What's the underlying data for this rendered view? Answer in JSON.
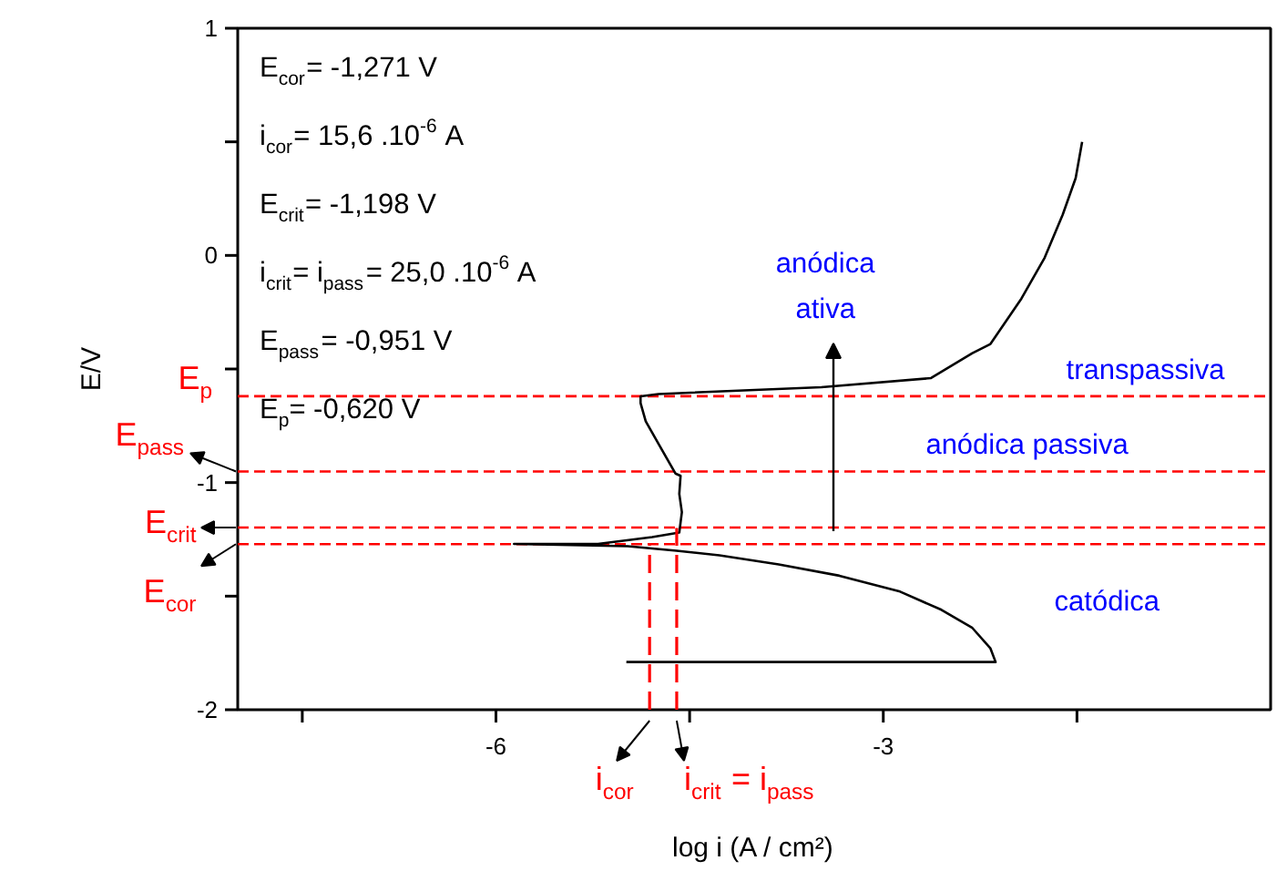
{
  "chart_data": {
    "type": "line",
    "xlabel": "log i (A / cm²)",
    "ylabel": "E/V",
    "xlim": [
      -8,
      0
    ],
    "ylim": [
      -2,
      1
    ],
    "xticks": [
      {
        "value": -7.5,
        "label": null
      },
      -6,
      {
        "value": -4.5,
        "label": null
      },
      -3,
      {
        "value": -1.5,
        "label": null
      }
    ],
    "yticks": [
      -2,
      {
        "value": -1.5,
        "label": null
      },
      -1,
      {
        "value": -0.5,
        "label": null
      },
      0,
      {
        "value": 0.5,
        "label": null
      },
      1
    ],
    "grid": false,
    "marker": "none",
    "series": [
      {
        "color": "#000000",
        "line_style": "solid",
        "x": [
          -4.99,
          -2.13,
          -2.17,
          -2.31,
          -2.55,
          -2.87,
          -3.34,
          -3.81,
          -4.27,
          -4.6,
          -4.98,
          -5.86,
          -5.21,
          -4.79,
          -4.58,
          -4.56,
          -4.58,
          -4.57,
          -4.61,
          -4.74,
          -4.84,
          -4.88,
          -4.88,
          -4.74,
          -3.48,
          -2.63,
          -2.31,
          -2.17,
          -1.93,
          -1.75,
          -1.61,
          -1.51,
          -1.46
        ],
        "values": [
          -1.79,
          -1.79,
          -1.73,
          -1.64,
          -1.56,
          -1.48,
          -1.41,
          -1.36,
          -1.32,
          -1.3,
          -1.28,
          -1.27,
          -1.27,
          -1.24,
          -1.22,
          -1.13,
          -1.05,
          -0.97,
          -0.96,
          -0.83,
          -0.73,
          -0.65,
          -0.62,
          -0.61,
          -0.58,
          -0.54,
          -0.43,
          -0.39,
          -0.19,
          -0.01,
          0.18,
          0.34,
          0.5
        ]
      },
      {
        "name": "i$_{cor}$",
        "color": "#ff0000",
        "line_style": "dashed",
        "x": [
          -4.81,
          -4.81
        ],
        "values": [
          -2,
          -1.27
        ]
      },
      {
        "name": "i$_{crit}$ = i$_{pass}$",
        "color": "#ff0000",
        "line_style": "dashed",
        "x": [
          -4.6,
          -4.6
        ],
        "values": [
          -2,
          -1.2
        ]
      }
    ],
    "ref_lines": [
      {
        "axis": "y",
        "value": -0.62,
        "label": "E$_{p}$",
        "color": "#ff0000",
        "line_style": "dashed"
      },
      {
        "axis": "y",
        "value": -0.951,
        "label": "E$_{pass}$",
        "color": "#ff0000",
        "line_style": "dashed"
      },
      {
        "axis": "y",
        "value": -1.198,
        "label": "E$_{crit}$",
        "color": "#ff0000",
        "line_style": "dashed"
      },
      {
        "axis": "y",
        "value": -1.271,
        "label": "E$_{cor}$",
        "color": "#ff0000",
        "line_style": "dashed"
      }
    ],
    "annotations": [
      "E$_{cor}$= -1,271 V",
      "i$_{cor}$= 15,6 .10$^{-6}$ A",
      "E$_{crit}$= -1,198 V",
      "i$_{crit}$= i$_{pass}$= 25,0 .10$^{-6}$ A",
      "E$_{pass}$= -0,951 V",
      "E$_{p}$= -0,620 V",
      "anódica\nativa",
      "anódica passiva",
      "transpassiva",
      "catódica"
    ]
  }
}
